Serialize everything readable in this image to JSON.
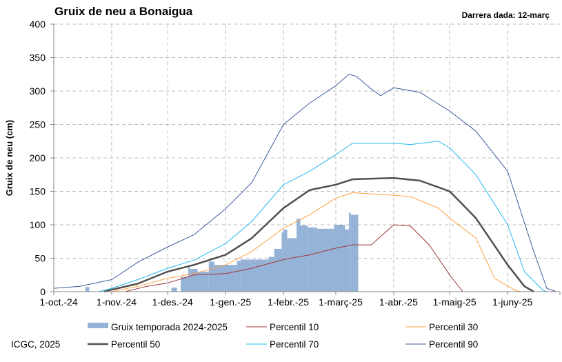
{
  "chart_data": {
    "type": "bar+line",
    "title": "Gruix de neu a Bonaigua",
    "subtitle": "Darrera dada: 12-març",
    "ylabel": "Gruix de neu (cm)",
    "xlabel": "",
    "ylim": [
      0,
      400
    ],
    "yticks": [
      0,
      50,
      100,
      150,
      200,
      250,
      300,
      350,
      400
    ],
    "xlim": [
      "2024-10-01",
      "2025-06-29"
    ],
    "xticks": [
      {
        "date": "2024-10-01",
        "label": "1-oct.-24"
      },
      {
        "date": "2024-11-01",
        "label": "1-nov.-24"
      },
      {
        "date": "2024-12-01",
        "label": "1-des.-24"
      },
      {
        "date": "2025-01-01",
        "label": "1-gen.-25"
      },
      {
        "date": "2025-02-01",
        "label": "1-febr.-25"
      },
      {
        "date": "2025-03-01",
        "label": "1-març-25"
      },
      {
        "date": "2025-04-01",
        "label": "1-abr.-25"
      },
      {
        "date": "2025-05-01",
        "label": "1-maig-25"
      },
      {
        "date": "2025-06-01",
        "label": "1-juny-25"
      }
    ],
    "grid": true,
    "legend_position": "bottom",
    "bars": {
      "name": "Gruix temporada 2024-2025",
      "color": "#95b3d7",
      "ranges": [
        {
          "from": "2024-10-18",
          "to": "2024-10-19",
          "value": 7
        },
        {
          "from": "2024-12-03",
          "to": "2024-12-05",
          "value": 6
        },
        {
          "from": "2024-12-08",
          "to": "2024-12-11",
          "value": 22
        },
        {
          "from": "2024-12-12",
          "to": "2024-12-12",
          "value": 36
        },
        {
          "from": "2024-12-13",
          "to": "2024-12-16",
          "value": 34
        },
        {
          "from": "2024-12-17",
          "to": "2024-12-22",
          "value": 30
        },
        {
          "from": "2024-12-23",
          "to": "2024-12-25",
          "value": 45
        },
        {
          "from": "2024-12-26",
          "to": "2025-01-06",
          "value": 40
        },
        {
          "from": "2025-01-07",
          "to": "2025-01-08",
          "value": 46
        },
        {
          "from": "2025-01-09",
          "to": "2025-01-23",
          "value": 48
        },
        {
          "from": "2025-01-24",
          "to": "2025-01-26",
          "value": 52
        },
        {
          "from": "2025-01-27",
          "to": "2025-01-30",
          "value": 64
        },
        {
          "from": "2025-01-31",
          "to": "2025-01-31",
          "value": 89
        },
        {
          "from": "2025-02-01",
          "to": "2025-02-02",
          "value": 93
        },
        {
          "from": "2025-02-03",
          "to": "2025-02-07",
          "value": 80
        },
        {
          "from": "2025-02-08",
          "to": "2025-02-09",
          "value": 109
        },
        {
          "from": "2025-02-10",
          "to": "2025-02-13",
          "value": 99
        },
        {
          "from": "2025-02-14",
          "to": "2025-02-18",
          "value": 96
        },
        {
          "from": "2025-02-19",
          "to": "2025-02-27",
          "value": 94
        },
        {
          "from": "2025-02-28",
          "to": "2025-03-05",
          "value": 100
        },
        {
          "from": "2025-03-06",
          "to": "2025-03-07",
          "value": 93
        },
        {
          "from": "2025-03-08",
          "to": "2025-03-08",
          "value": 118
        },
        {
          "from": "2025-03-09",
          "to": "2025-03-12",
          "value": 115
        }
      ]
    },
    "series": [
      {
        "name": "Percentil 10",
        "color": "#a03434",
        "width": 1,
        "points": [
          [
            "2024-11-08",
            0
          ],
          [
            "2024-11-20",
            8
          ],
          [
            "2024-12-01",
            13
          ],
          [
            "2024-12-15",
            25
          ],
          [
            "2025-01-01",
            27
          ],
          [
            "2025-01-15",
            35
          ],
          [
            "2025-02-01",
            48
          ],
          [
            "2025-02-15",
            55
          ],
          [
            "2025-03-01",
            65
          ],
          [
            "2025-03-10",
            70
          ],
          [
            "2025-03-20",
            70
          ],
          [
            "2025-04-01",
            100
          ],
          [
            "2025-04-10",
            98
          ],
          [
            "2025-04-20",
            70
          ],
          [
            "2025-05-01",
            25
          ],
          [
            "2025-05-08",
            0
          ]
        ]
      },
      {
        "name": "Percentil 30",
        "color": "#ffa040",
        "width": 1,
        "points": [
          [
            "2024-11-01",
            0
          ],
          [
            "2024-11-15",
            8
          ],
          [
            "2024-12-01",
            20
          ],
          [
            "2024-12-15",
            27
          ],
          [
            "2025-01-01",
            40
          ],
          [
            "2025-01-15",
            60
          ],
          [
            "2025-02-01",
            95
          ],
          [
            "2025-02-15",
            115
          ],
          [
            "2025-03-01",
            140
          ],
          [
            "2025-03-10",
            148
          ],
          [
            "2025-04-01",
            144
          ],
          [
            "2025-04-10",
            142
          ],
          [
            "2025-04-25",
            125
          ],
          [
            "2025-05-01",
            110
          ],
          [
            "2025-05-15",
            80
          ],
          [
            "2025-05-25",
            20
          ],
          [
            "2025-06-05",
            2
          ],
          [
            "2025-06-08",
            0
          ]
        ]
      },
      {
        "name": "Percentil 50",
        "color": "#4f4f4f",
        "width": 2.5,
        "points": [
          [
            "2024-10-28",
            0
          ],
          [
            "2024-11-01",
            3
          ],
          [
            "2024-11-15",
            12
          ],
          [
            "2024-12-01",
            30
          ],
          [
            "2024-12-15",
            40
          ],
          [
            "2025-01-01",
            55
          ],
          [
            "2025-01-15",
            80
          ],
          [
            "2025-02-01",
            125
          ],
          [
            "2025-02-15",
            152
          ],
          [
            "2025-03-01",
            160
          ],
          [
            "2025-03-10",
            168
          ],
          [
            "2025-04-01",
            170
          ],
          [
            "2025-04-15",
            166
          ],
          [
            "2025-05-01",
            150
          ],
          [
            "2025-05-15",
            110
          ],
          [
            "2025-06-01",
            40
          ],
          [
            "2025-06-10",
            8
          ],
          [
            "2025-06-15",
            0
          ]
        ]
      },
      {
        "name": "Percentil 70",
        "color": "#22b8f0",
        "width": 1,
        "points": [
          [
            "2024-10-25",
            0
          ],
          [
            "2024-11-01",
            5
          ],
          [
            "2024-11-15",
            18
          ],
          [
            "2024-12-01",
            35
          ],
          [
            "2024-12-15",
            47
          ],
          [
            "2025-01-01",
            72
          ],
          [
            "2025-01-15",
            105
          ],
          [
            "2025-02-01",
            160
          ],
          [
            "2025-02-15",
            180
          ],
          [
            "2025-03-01",
            205
          ],
          [
            "2025-03-10",
            222
          ],
          [
            "2025-04-01",
            222
          ],
          [
            "2025-04-10",
            220
          ],
          [
            "2025-04-25",
            225
          ],
          [
            "2025-05-01",
            215
          ],
          [
            "2025-05-15",
            175
          ],
          [
            "2025-06-01",
            100
          ],
          [
            "2025-06-10",
            30
          ],
          [
            "2025-06-20",
            2
          ],
          [
            "2025-06-22",
            0
          ]
        ]
      },
      {
        "name": "Percentil 90",
        "color": "#3c5a9a",
        "width": 1,
        "points": [
          [
            "2024-10-01",
            5
          ],
          [
            "2024-10-15",
            8
          ],
          [
            "2024-11-01",
            18
          ],
          [
            "2024-11-15",
            44
          ],
          [
            "2024-12-01",
            67
          ],
          [
            "2024-12-15",
            85
          ],
          [
            "2025-01-01",
            124
          ],
          [
            "2025-01-15",
            163
          ],
          [
            "2025-02-01",
            250
          ],
          [
            "2025-02-15",
            282
          ],
          [
            "2025-03-01",
            308
          ],
          [
            "2025-03-08",
            325
          ],
          [
            "2025-03-12",
            322
          ],
          [
            "2025-03-20",
            303
          ],
          [
            "2025-03-25",
            293
          ],
          [
            "2025-04-01",
            305
          ],
          [
            "2025-04-15",
            298
          ],
          [
            "2025-05-01",
            270
          ],
          [
            "2025-05-15",
            240
          ],
          [
            "2025-06-01",
            180
          ],
          [
            "2025-06-15",
            60
          ],
          [
            "2025-06-22",
            5
          ],
          [
            "2025-06-27",
            0
          ]
        ]
      }
    ]
  },
  "footer": {
    "credit": "ICGC, 2025"
  }
}
